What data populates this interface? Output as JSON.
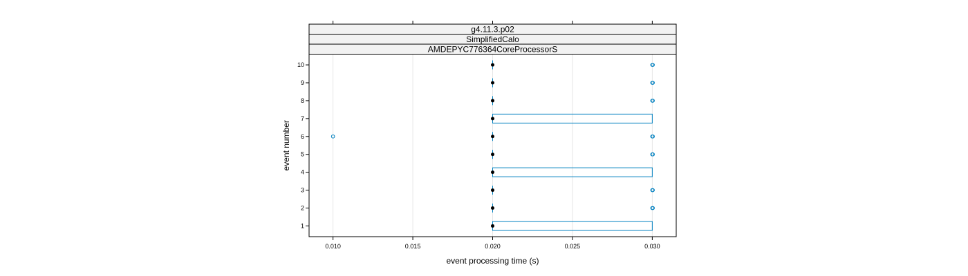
{
  "chart_data": {
    "type": "box",
    "orientation": "horizontal",
    "strips": [
      "g4.11.3.p02",
      "SimplifiedCalo",
      "AMDEPYC776364CoreProcessorS"
    ],
    "xlabel": "event processing time (s)",
    "ylabel": "event number",
    "xlim": [
      0.0085,
      0.0315
    ],
    "ylim": [
      0.4,
      10.6
    ],
    "x_ticks": [
      "0.010",
      "0.015",
      "0.020",
      "0.025",
      "0.030"
    ],
    "y_ticks": [
      "1",
      "2",
      "3",
      "4",
      "5",
      "6",
      "7",
      "8",
      "9",
      "10"
    ],
    "grid": true,
    "colors": {
      "box": "#0080c0",
      "median": "#000000",
      "outlier": "#0080c0",
      "grid": "#e6e6e6",
      "strip_bg": "#f2f2f2"
    },
    "boxes": [
      {
        "event": 1,
        "q1": 0.02,
        "median": 0.02,
        "q3": 0.03,
        "outliers": []
      },
      {
        "event": 2,
        "q1": 0.02,
        "median": 0.02,
        "q3": 0.02,
        "outliers": [
          0.03
        ]
      },
      {
        "event": 3,
        "q1": 0.02,
        "median": 0.02,
        "q3": 0.02,
        "outliers": [
          0.03
        ]
      },
      {
        "event": 4,
        "q1": 0.02,
        "median": 0.02,
        "q3": 0.03,
        "outliers": []
      },
      {
        "event": 5,
        "q1": 0.02,
        "median": 0.02,
        "q3": 0.02,
        "outliers": [
          0.03
        ]
      },
      {
        "event": 6,
        "q1": 0.02,
        "median": 0.02,
        "q3": 0.02,
        "outliers": [
          0.01,
          0.03
        ]
      },
      {
        "event": 7,
        "q1": 0.02,
        "median": 0.02,
        "q3": 0.03,
        "outliers": []
      },
      {
        "event": 8,
        "q1": 0.02,
        "median": 0.02,
        "q3": 0.02,
        "outliers": [
          0.03
        ]
      },
      {
        "event": 9,
        "q1": 0.02,
        "median": 0.02,
        "q3": 0.02,
        "outliers": [
          0.03
        ]
      },
      {
        "event": 10,
        "q1": 0.02,
        "median": 0.02,
        "q3": 0.02,
        "outliers": [
          0.03
        ]
      }
    ]
  }
}
